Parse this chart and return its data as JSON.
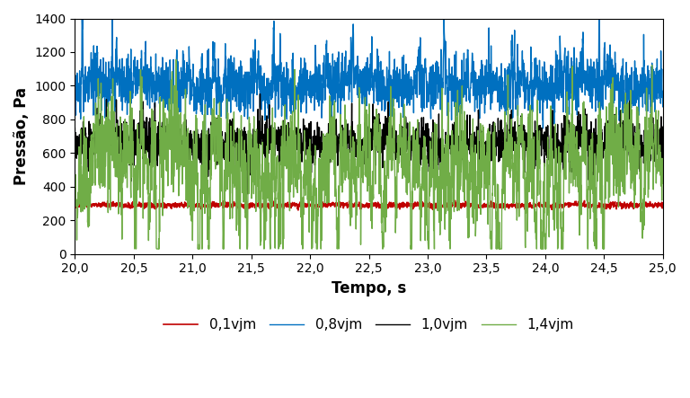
{
  "title": "",
  "xlabel": "Tempo, s",
  "ylabel": "Pressão, Pa",
  "xlim": [
    20.0,
    25.0
  ],
  "ylim": [
    0,
    1400
  ],
  "xticks": [
    20.0,
    20.5,
    21.0,
    21.5,
    22.0,
    22.5,
    23.0,
    23.5,
    24.0,
    24.5,
    25.0
  ],
  "yticks": [
    0,
    200,
    400,
    600,
    800,
    1000,
    1200,
    1400
  ],
  "series": [
    {
      "label": "0,1vjm",
      "color": "#c00000",
      "mean": 290,
      "std": 8,
      "seed": 42,
      "lw": 1.2
    },
    {
      "label": "0,8vjm",
      "color": "#0070c0",
      "mean": 1000,
      "std": 80,
      "seed": 43,
      "lw": 1.0
    },
    {
      "label": "1,0vjm",
      "color": "#000000",
      "mean": 660,
      "std": 70,
      "seed": 44,
      "lw": 1.0
    },
    {
      "label": "1,4vjm",
      "color": "#70ad47",
      "mean": 590,
      "std": 150,
      "seed": 45,
      "lw": 1.0
    }
  ],
  "n_points": 2500,
  "legend_fontsize": 11,
  "axis_label_fontsize": 12,
  "tick_label_fontsize": 10,
  "background_color": "#ffffff",
  "grid": false
}
